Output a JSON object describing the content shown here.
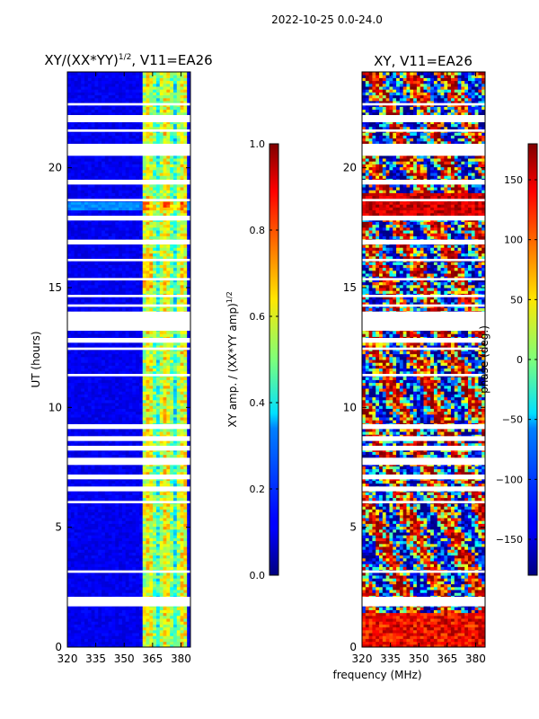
{
  "figure": {
    "suptitle": "2022-10-25 0.0-24.0",
    "xlabel_shared": "frequency (MHz)"
  },
  "chart_data": [
    {
      "type": "heatmap",
      "title_prefix": "XY/(XX*YY)",
      "title_exponent": "1/2",
      "title_suffix": ", V11=EA26",
      "ylabel": "UT (hours)",
      "xlim": [
        320,
        385
      ],
      "ylim": [
        0,
        24
      ],
      "xticks": [
        320,
        335,
        350,
        365,
        380
      ],
      "yticks": [
        0,
        5,
        10,
        15,
        20
      ],
      "colorbar": {
        "label_prefix": "XY amp. / (XX*YY amp)",
        "label_exponent": "1/2",
        "range": [
          0.0,
          1.0
        ],
        "ticks": [
          0.0,
          0.2,
          0.4,
          0.6,
          0.8,
          1.0
        ],
        "tick_labels": [
          "0.0",
          "0.2",
          "0.4",
          "0.6",
          "0.8",
          "1.0"
        ],
        "colormap": "jet"
      }
    },
    {
      "type": "heatmap",
      "title": "XY, V11=EA26",
      "ylabel": "",
      "xlim": [
        320,
        385
      ],
      "ylim": [
        0,
        24
      ],
      "xticks": [
        320,
        335,
        350,
        365,
        380
      ],
      "yticks": [
        0,
        5,
        10,
        15,
        20
      ],
      "colorbar": {
        "label": "phase (deg.)",
        "range": [
          -180,
          180
        ],
        "ticks": [
          -150,
          -100,
          -50,
          0,
          50,
          100,
          150
        ],
        "tick_labels": [
          "−150",
          "−100",
          "−50",
          "0",
          "50",
          "100",
          "150"
        ],
        "colormap": "jet"
      }
    }
  ],
  "gaps_ut_hours": [
    [
      1.7,
      2.1
    ],
    [
      3.1,
      3.2
    ],
    [
      6.0,
      6.1
    ],
    [
      6.5,
      6.7
    ],
    [
      7.0,
      7.2
    ],
    [
      7.6,
      7.9
    ],
    [
      8.2,
      8.4
    ],
    [
      8.6,
      8.8
    ],
    [
      9.1,
      9.3
    ],
    [
      11.3,
      11.4
    ],
    [
      12.4,
      12.5
    ],
    [
      12.7,
      12.9
    ],
    [
      13.2,
      14.0
    ],
    [
      14.2,
      14.3
    ],
    [
      14.6,
      14.7
    ],
    [
      15.3,
      15.4
    ],
    [
      16.1,
      16.2
    ],
    [
      16.8,
      17.0
    ],
    [
      17.8,
      18.0
    ],
    [
      18.6,
      18.7
    ],
    [
      19.3,
      19.5
    ],
    [
      20.5,
      21.0
    ],
    [
      21.5,
      21.6
    ],
    [
      21.9,
      22.2
    ],
    [
      22.6,
      22.7
    ]
  ]
}
